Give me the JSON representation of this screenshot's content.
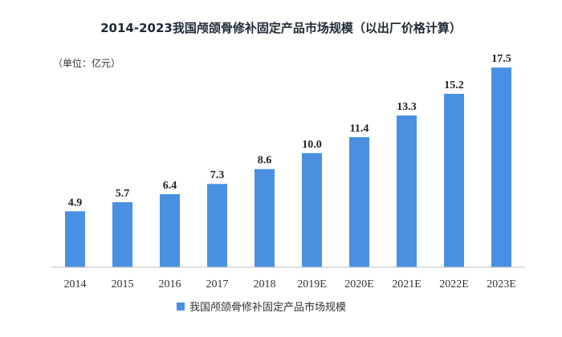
{
  "chart_data": {
    "type": "bar",
    "title": "2014-2023我国颅颌骨修补固定产品市场规模（以出厂价格计算）",
    "unit_label": "（单位：亿元）",
    "categories": [
      "2014",
      "2015",
      "2016",
      "2017",
      "2018",
      "2019E",
      "2020E",
      "2021E",
      "2022E",
      "2023E"
    ],
    "series": [
      {
        "name": "我国颅颌骨修补固定产品市场规模",
        "values": [
          4.9,
          5.7,
          6.4,
          7.3,
          8.6,
          10.0,
          11.4,
          13.3,
          15.2,
          17.5
        ],
        "labels": [
          "4.9",
          "5.7",
          "6.4",
          "7.3",
          "8.6",
          "10.0",
          "11.4",
          "13.3",
          "15.2",
          "17.5"
        ]
      }
    ],
    "ylim": [
      0,
      18.5
    ],
    "grid": false,
    "legend_position": "bottom",
    "colors": {
      "bar": "#4a90e2",
      "axis": "#bfbfbf"
    }
  }
}
